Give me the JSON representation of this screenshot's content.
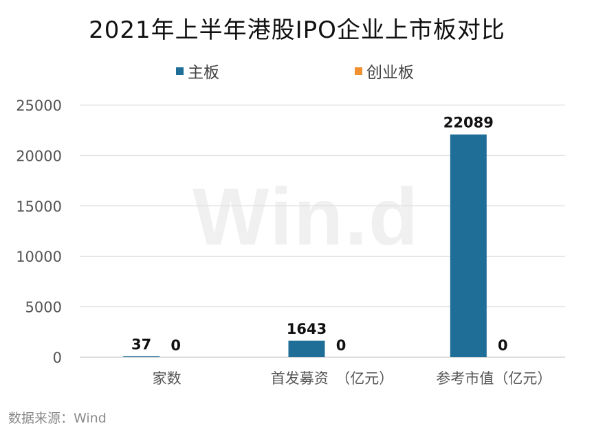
{
  "chart_data": {
    "type": "bar",
    "title": "2021年上半年港股IPO企业上市板对比",
    "categories": [
      "家数",
      "首发募资　（亿元）",
      "参考市值（亿元）"
    ],
    "series": [
      {
        "name": "主板",
        "values": [
          37,
          1643,
          22089
        ],
        "color": "#1f6e97"
      },
      {
        "name": "创业板",
        "values": [
          0,
          0,
          0
        ],
        "color": "#f0902f"
      }
    ],
    "ylim": [
      0,
      25000
    ],
    "yticks": [
      0,
      5000,
      10000,
      15000,
      20000,
      25000
    ],
    "grid": true,
    "legend_position": "top",
    "data_labels": true
  },
  "watermark": "Win.d",
  "source": "数据来源：Wind"
}
